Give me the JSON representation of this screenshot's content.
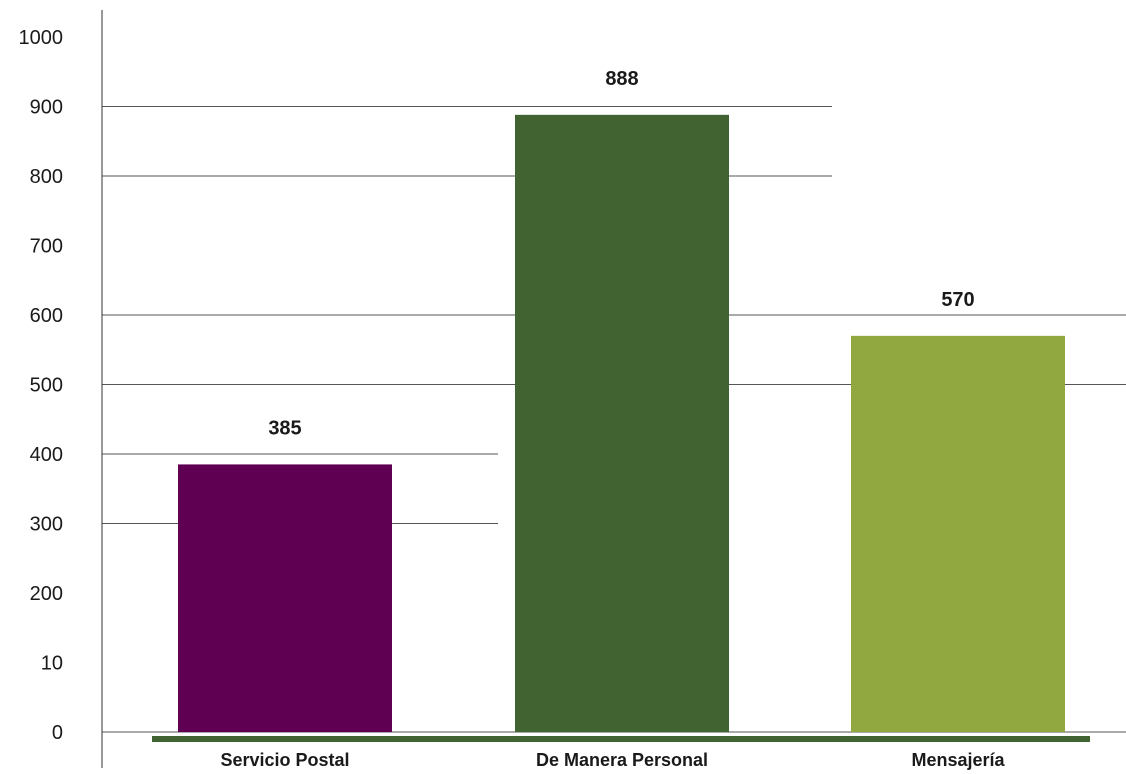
{
  "chart_data": {
    "type": "bar",
    "categories": [
      "Servicio Postal",
      "De Manera Personal",
      "Mensajería"
    ],
    "values": [
      385,
      888,
      570
    ],
    "data_labels": [
      "385",
      "888",
      "570"
    ],
    "y_tick_labels": [
      "0",
      "10",
      "200",
      "300",
      "400",
      "500",
      "600",
      "700",
      "800",
      "900",
      "1000"
    ],
    "ylim": [
      0,
      1000
    ],
    "title": "",
    "xlabel": "",
    "ylabel": "",
    "grid": true,
    "colors": [
      "#600052",
      "#416331",
      "#90a83f"
    ],
    "baseline_color": "#416331"
  }
}
